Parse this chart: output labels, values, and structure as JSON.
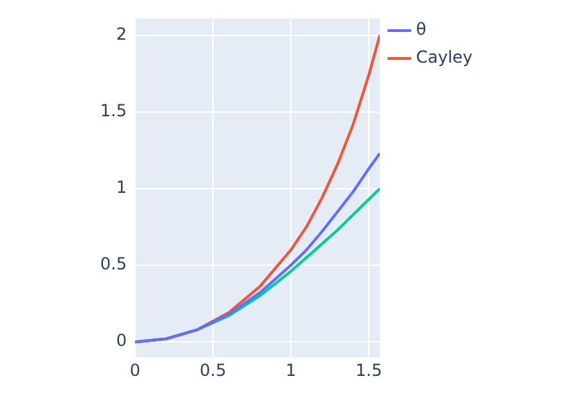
{
  "chart_data": {
    "type": "line",
    "x": [
      0,
      0.2,
      0.4,
      0.6,
      0.8,
      1.0,
      1.1,
      1.2,
      1.3,
      1.4,
      1.5,
      1.571
    ],
    "series": [
      {
        "name": "θ",
        "color": "#636efa",
        "values": [
          0,
          0.02,
          0.08,
          0.18,
          0.32,
          0.5,
          0.6,
          0.72,
          0.85,
          0.98,
          1.13,
          1.23
        ]
      },
      {
        "name": "Cayley",
        "color": "#ef553b",
        "values": [
          0,
          0.02,
          0.08,
          0.19,
          0.36,
          0.6,
          0.75,
          0.94,
          1.16,
          1.42,
          1.74,
          2.0
        ]
      },
      {
        "color": "#00cc96",
        "values": [
          0,
          0.02,
          0.08,
          0.17,
          0.3,
          0.46,
          0.55,
          0.64,
          0.73,
          0.83,
          0.93,
          1.0
        ]
      }
    ],
    "xlim": [
      0,
      1.571
    ],
    "xticks": [
      0,
      0.5,
      1,
      1.5
    ],
    "ylim": [
      -0.1,
      2.11
    ],
    "yticks": [
      0,
      0.5,
      1,
      1.5,
      2
    ],
    "grid": true,
    "legend": "top right",
    "marker": "none",
    "line_style": "solid"
  }
}
